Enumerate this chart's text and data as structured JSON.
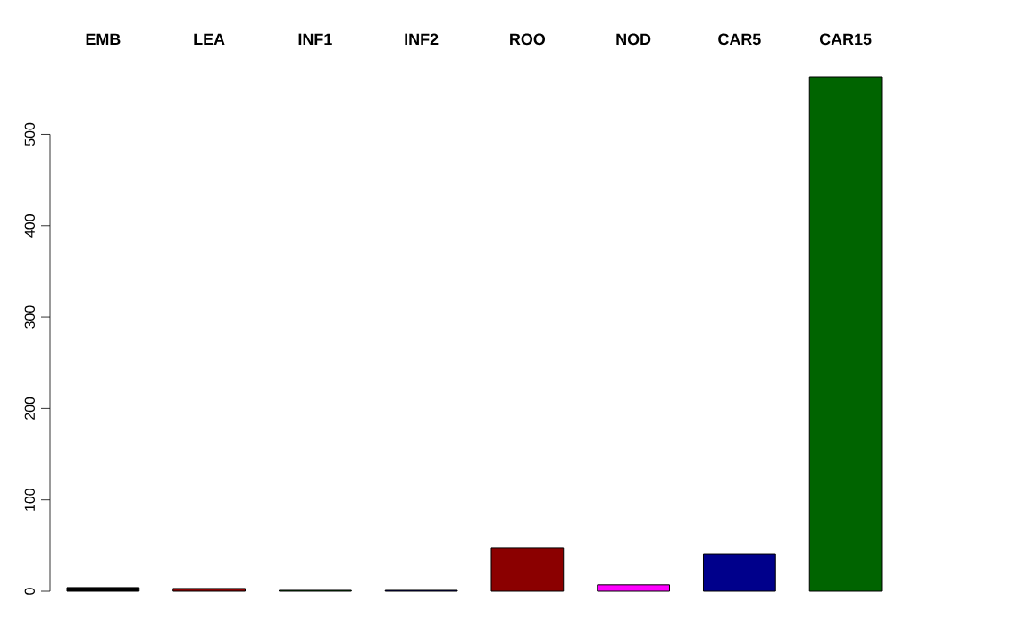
{
  "chart_data": {
    "type": "bar",
    "categories": [
      "EMB",
      "LEA",
      "INF1",
      "INF2",
      "ROO",
      "NOD",
      "CAR5",
      "CAR15"
    ],
    "values": [
      4,
      3,
      1,
      1,
      47,
      7,
      41,
      563
    ],
    "colors": [
      "#000000",
      "#8b0000",
      "#006400",
      "#00008b",
      "#8b0000",
      "#ff00ff",
      "#00008b",
      "#006400"
    ],
    "ylim": [
      0,
      563
    ],
    "yticks": [
      0,
      100,
      200,
      300,
      400,
      500
    ]
  }
}
